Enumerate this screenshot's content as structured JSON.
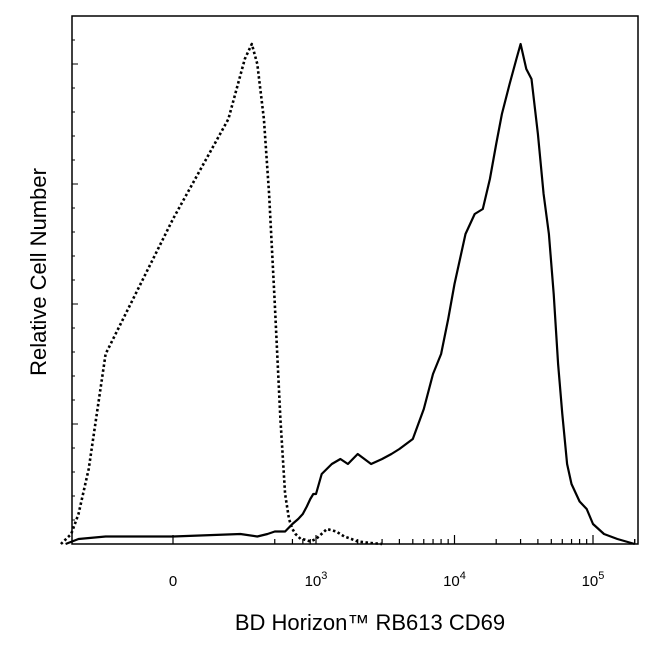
{
  "chart_data": {
    "type": "line",
    "title": "",
    "xlabel": "BD Horizon™ RB613 CD69",
    "ylabel": "Relative Cell Number",
    "x_scale": "biexponential",
    "xlim": [
      -1000,
      250000
    ],
    "ylim": [
      0,
      1
    ],
    "grid": false,
    "legend": "none",
    "x_ticks": [
      {
        "value": 0,
        "base": "0",
        "exp": ""
      },
      {
        "value": 1000,
        "base": "10",
        "exp": "3"
      },
      {
        "value": 10000,
        "base": "10",
        "exp": "4"
      },
      {
        "value": 100000,
        "base": "10",
        "exp": "5"
      }
    ],
    "series": [
      {
        "line_style": "dotted",
        "color": "#000000",
        "x": [
          -300,
          -200,
          -150,
          -100,
          -50,
          0,
          30,
          60,
          80,
          100,
          130,
          160,
          200,
          250,
          300,
          350,
          400,
          450,
          500,
          550,
          600,
          800,
          1000,
          1200,
          1400,
          1600,
          1800,
          2000,
          2500,
          3000
        ],
        "y": [
          0.0,
          0.02,
          0.06,
          0.15,
          0.38,
          0.65,
          0.85,
          0.97,
          1.0,
          0.96,
          0.85,
          0.7,
          0.48,
          0.25,
          0.1,
          0.05,
          0.03,
          0.02,
          0.015,
          0.01,
          0.01,
          0.005,
          0.01,
          0.03,
          0.025,
          0.015,
          0.01,
          0.005,
          0.002,
          0.0
        ]
      },
      {
        "line_style": "solid",
        "color": "#000000",
        "x": [
          -250,
          -150,
          -50,
          0,
          50,
          100,
          150,
          200,
          300,
          400,
          500,
          600,
          700,
          800,
          900,
          1000,
          1100,
          1300,
          1500,
          1700,
          2000,
          2500,
          3000,
          3500,
          4000,
          5000,
          6000,
          7000,
          8000,
          9000,
          10000,
          12000,
          14000,
          16000,
          18000,
          20000,
          22000,
          25000,
          28000,
          30000,
          33000,
          36000,
          40000,
          44000,
          48000,
          52000,
          56000,
          60000,
          65000,
          70000,
          80000,
          90000,
          100000,
          120000,
          150000,
          200000
        ],
        "y": [
          0.0,
          0.01,
          0.015,
          0.015,
          0.02,
          0.015,
          0.02,
          0.025,
          0.025,
          0.04,
          0.05,
          0.06,
          0.075,
          0.09,
          0.1,
          0.1,
          0.14,
          0.16,
          0.17,
          0.16,
          0.18,
          0.16,
          0.17,
          0.18,
          0.19,
          0.21,
          0.27,
          0.34,
          0.38,
          0.45,
          0.52,
          0.62,
          0.66,
          0.67,
          0.73,
          0.8,
          0.86,
          0.92,
          0.97,
          1.0,
          0.95,
          0.93,
          0.82,
          0.7,
          0.62,
          0.5,
          0.36,
          0.26,
          0.16,
          0.12,
          0.085,
          0.07,
          0.04,
          0.02,
          0.01,
          0.0
        ]
      }
    ]
  }
}
